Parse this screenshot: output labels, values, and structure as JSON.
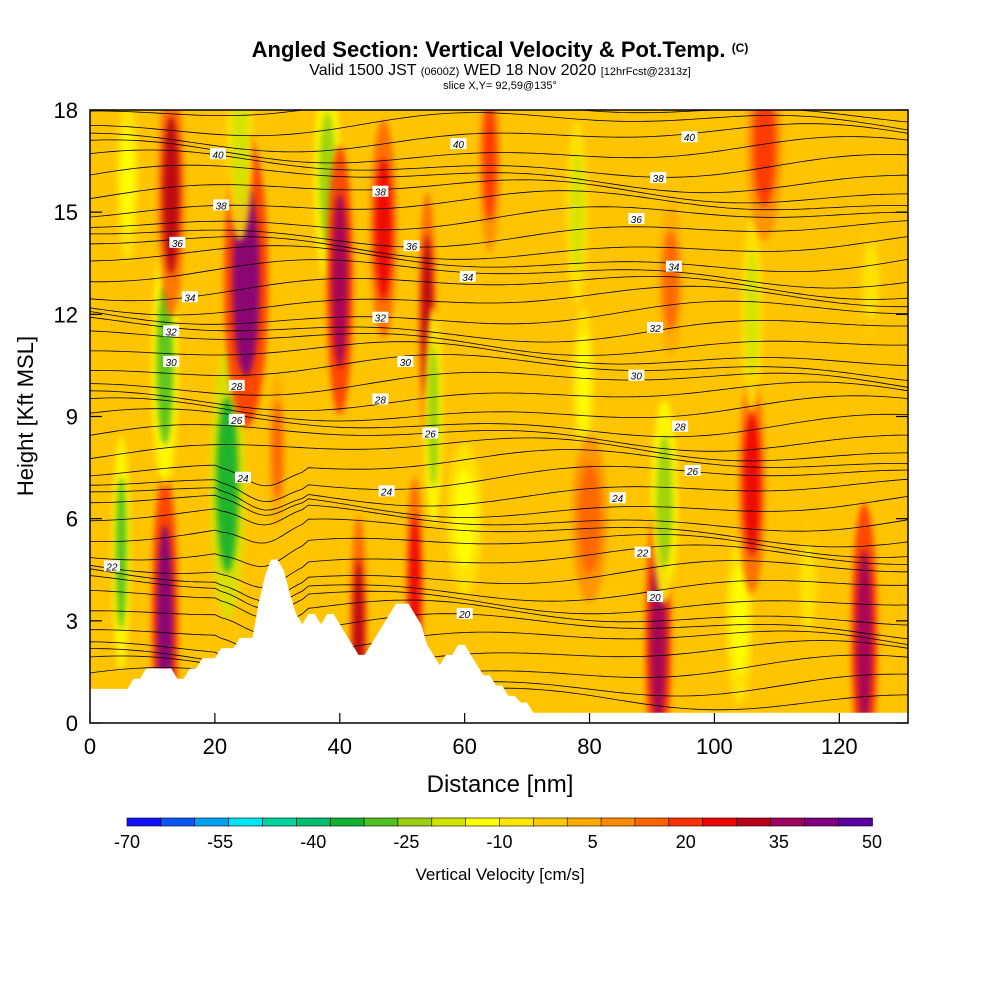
{
  "header": {
    "title": "Angled Section: Vertical Velocity & Pot.Temp.",
    "title_tag": "(C)",
    "valid_prefix": "Valid 1500 JST",
    "valid_zulu": "(0600Z)",
    "valid_date": "WED 18 Nov 2020",
    "valid_fcst": "[12hrFcst@2313z]",
    "slice": "slice X,Y= 92,59@135°"
  },
  "chart_data": {
    "type": "heatmap",
    "xlabel": "Distance [nm]",
    "ylabel": "Height [Kft MSL]",
    "xlim": [
      0,
      131
    ],
    "ylim": [
      0,
      18
    ],
    "x_ticks": [
      0,
      20,
      40,
      60,
      80,
      100,
      120
    ],
    "y_ticks": [
      0,
      3,
      6,
      9,
      12,
      15,
      18
    ],
    "colorbar": {
      "label": "Vertical Velocity [cm/s]",
      "tick_labels": [
        "-70",
        "-55",
        "-40",
        "-25",
        "-10",
        "5",
        "20",
        "35",
        "50"
      ],
      "colors": [
        "#1010ff",
        "#0a55f5",
        "#00a0f0",
        "#00e6f0",
        "#00d2a0",
        "#00c070",
        "#10b030",
        "#50c020",
        "#9ad010",
        "#d2e400",
        "#ffff00",
        "#ffe600",
        "#ffc800",
        "#ffaa00",
        "#ff8c00",
        "#ff6400",
        "#ff3000",
        "#ee0000",
        "#b80018",
        "#a00060",
        "#800080",
        "#5a00a0"
      ]
    },
    "background_color": "#ffc400",
    "terrain_profile": [
      [
        0,
        1.0
      ],
      [
        1,
        1.0
      ],
      [
        2,
        1.0
      ],
      [
        3,
        1.0
      ],
      [
        4,
        1.0
      ],
      [
        5,
        1.0
      ],
      [
        6,
        1.0
      ],
      [
        7,
        1.3
      ],
      [
        8,
        1.3
      ],
      [
        9,
        1.6
      ],
      [
        10,
        1.6
      ],
      [
        11,
        1.6
      ],
      [
        12,
        1.6
      ],
      [
        13,
        1.6
      ],
      [
        14,
        1.3
      ],
      [
        15,
        1.3
      ],
      [
        16,
        1.6
      ],
      [
        17,
        1.6
      ],
      [
        18,
        1.9
      ],
      [
        19,
        1.9
      ],
      [
        20,
        1.9
      ],
      [
        21,
        2.2
      ],
      [
        22,
        2.2
      ],
      [
        23,
        2.2
      ],
      [
        24,
        2.5
      ],
      [
        25,
        2.5
      ],
      [
        26,
        2.5
      ],
      [
        27,
        3.5
      ],
      [
        28,
        4.3
      ],
      [
        29,
        4.8
      ],
      [
        30,
        4.8
      ],
      [
        31,
        4.5
      ],
      [
        32,
        3.8
      ],
      [
        33,
        3.2
      ],
      [
        34,
        2.9
      ],
      [
        35,
        3.2
      ],
      [
        36,
        3.2
      ],
      [
        37,
        2.9
      ],
      [
        38,
        3.2
      ],
      [
        39,
        3.2
      ],
      [
        40,
        2.9
      ],
      [
        41,
        2.6
      ],
      [
        42,
        2.3
      ],
      [
        43,
        2.0
      ],
      [
        44,
        2.0
      ],
      [
        45,
        2.3
      ],
      [
        46,
        2.6
      ],
      [
        47,
        2.9
      ],
      [
        48,
        3.2
      ],
      [
        49,
        3.5
      ],
      [
        50,
        3.5
      ],
      [
        51,
        3.5
      ],
      [
        52,
        3.2
      ],
      [
        53,
        2.9
      ],
      [
        54,
        2.3
      ],
      [
        55,
        2.0
      ],
      [
        56,
        1.7
      ],
      [
        57,
        2.0
      ],
      [
        58,
        2.0
      ],
      [
        59,
        2.3
      ],
      [
        60,
        2.3
      ],
      [
        61,
        2.0
      ],
      [
        62,
        1.7
      ],
      [
        63,
        1.4
      ],
      [
        64,
        1.4
      ],
      [
        65,
        1.1
      ],
      [
        66,
        1.1
      ],
      [
        67,
        0.8
      ],
      [
        68,
        0.8
      ],
      [
        69,
        0.6
      ],
      [
        70,
        0.6
      ],
      [
        71,
        0.3
      ],
      [
        72,
        0.3
      ],
      [
        131,
        0.3
      ]
    ],
    "velocity_anomalies": [
      {
        "x": 5,
        "y": 5.0,
        "w": 10,
        "value": -28
      },
      {
        "x": 12,
        "y": 3.0,
        "w": 15,
        "value": 40
      },
      {
        "x": 12,
        "y": 10.5,
        "w": 15,
        "value": -30
      },
      {
        "x": 13,
        "y": 15.5,
        "w": 15,
        "value": 30
      },
      {
        "x": 6,
        "y": 16.0,
        "w": 12,
        "value": -15
      },
      {
        "x": 22,
        "y": 7.0,
        "w": 20,
        "value": -35
      },
      {
        "x": 25,
        "y": 13.0,
        "w": 25,
        "value": 40
      },
      {
        "x": 24,
        "y": 17.0,
        "w": 15,
        "value": -20
      },
      {
        "x": 30,
        "y": 8.0,
        "w": 10,
        "value": 12
      },
      {
        "x": 38,
        "y": 16.0,
        "w": 15,
        "value": -22
      },
      {
        "x": 40,
        "y": 13.0,
        "w": 15,
        "value": 35
      },
      {
        "x": 43,
        "y": 2.5,
        "w": 10,
        "value": 30
      },
      {
        "x": 47,
        "y": 14.5,
        "w": 15,
        "value": 25
      },
      {
        "x": 52,
        "y": 4.0,
        "w": 10,
        "value": 25
      },
      {
        "x": 54,
        "y": 12.0,
        "w": 10,
        "value": 30
      },
      {
        "x": 55,
        "y": 9.0,
        "w": 10,
        "value": -25
      },
      {
        "x": 60,
        "y": 6.0,
        "w": 20,
        "value": -12
      },
      {
        "x": 64,
        "y": 16.5,
        "w": 12,
        "value": 18
      },
      {
        "x": 78,
        "y": 15.0,
        "w": 12,
        "value": -18
      },
      {
        "x": 79,
        "y": 10.0,
        "w": 12,
        "value": -12
      },
      {
        "x": 80,
        "y": 6.0,
        "w": 20,
        "value": 15
      },
      {
        "x": 91,
        "y": 2.5,
        "w": 15,
        "value": 35
      },
      {
        "x": 92,
        "y": 6.5,
        "w": 15,
        "value": -22
      },
      {
        "x": 93,
        "y": 13.0,
        "w": 15,
        "value": 12
      },
      {
        "x": 104,
        "y": 3.0,
        "w": 15,
        "value": -15
      },
      {
        "x": 106,
        "y": 7.0,
        "w": 15,
        "value": 25
      },
      {
        "x": 106,
        "y": 12.0,
        "w": 12,
        "value": -20
      },
      {
        "x": 108,
        "y": 17.0,
        "w": 20,
        "value": 20
      },
      {
        "x": 115,
        "y": 4.0,
        "w": 15,
        "value": -8
      },
      {
        "x": 124,
        "y": 2.5,
        "w": 15,
        "value": 35
      },
      {
        "x": 125,
        "y": 13.0,
        "w": 15,
        "value": -5
      }
    ],
    "theta_contour_labels": [
      {
        "text": "40",
        "x": 20.5,
        "y": 16.7
      },
      {
        "text": "40",
        "x": 59,
        "y": 17.0
      },
      {
        "text": "40",
        "x": 96,
        "y": 17.2
      },
      {
        "text": "38",
        "x": 21,
        "y": 15.2
      },
      {
        "text": "38",
        "x": 46.5,
        "y": 15.6
      },
      {
        "text": "38",
        "x": 91,
        "y": 16.0
      },
      {
        "text": "36",
        "x": 14,
        "y": 14.1
      },
      {
        "text": "36",
        "x": 51.5,
        "y": 14.0
      },
      {
        "text": "36",
        "x": 87.5,
        "y": 14.8
      },
      {
        "text": "34",
        "x": 16,
        "y": 12.5
      },
      {
        "text": "34",
        "x": 60.5,
        "y": 13.1
      },
      {
        "text": "34",
        "x": 93.5,
        "y": 13.4
      },
      {
        "text": "32",
        "x": 13,
        "y": 11.5
      },
      {
        "text": "32",
        "x": 46.5,
        "y": 11.9
      },
      {
        "text": "32",
        "x": 90.5,
        "y": 11.6
      },
      {
        "text": "30",
        "x": 13,
        "y": 10.6
      },
      {
        "text": "30",
        "x": 50.5,
        "y": 10.6
      },
      {
        "text": "30",
        "x": 87.5,
        "y": 10.2
      },
      {
        "text": "28",
        "x": 23.5,
        "y": 9.9
      },
      {
        "text": "28",
        "x": 46.5,
        "y": 9.5
      },
      {
        "text": "28",
        "x": 94.5,
        "y": 8.7
      },
      {
        "text": "26",
        "x": 23.5,
        "y": 8.9
      },
      {
        "text": "26",
        "x": 54.5,
        "y": 8.5
      },
      {
        "text": "26",
        "x": 96.5,
        "y": 7.4
      },
      {
        "text": "24",
        "x": 24.5,
        "y": 7.2
      },
      {
        "text": "24",
        "x": 47.5,
        "y": 6.8
      },
      {
        "text": "24",
        "x": 84.5,
        "y": 6.6
      },
      {
        "text": "22",
        "x": 3.5,
        "y": 4.6
      },
      {
        "text": "22",
        "x": 88.5,
        "y": 5.0
      },
      {
        "text": "20",
        "x": 60,
        "y": 3.2
      },
      {
        "text": "20",
        "x": 90.5,
        "y": 3.7
      }
    ]
  }
}
